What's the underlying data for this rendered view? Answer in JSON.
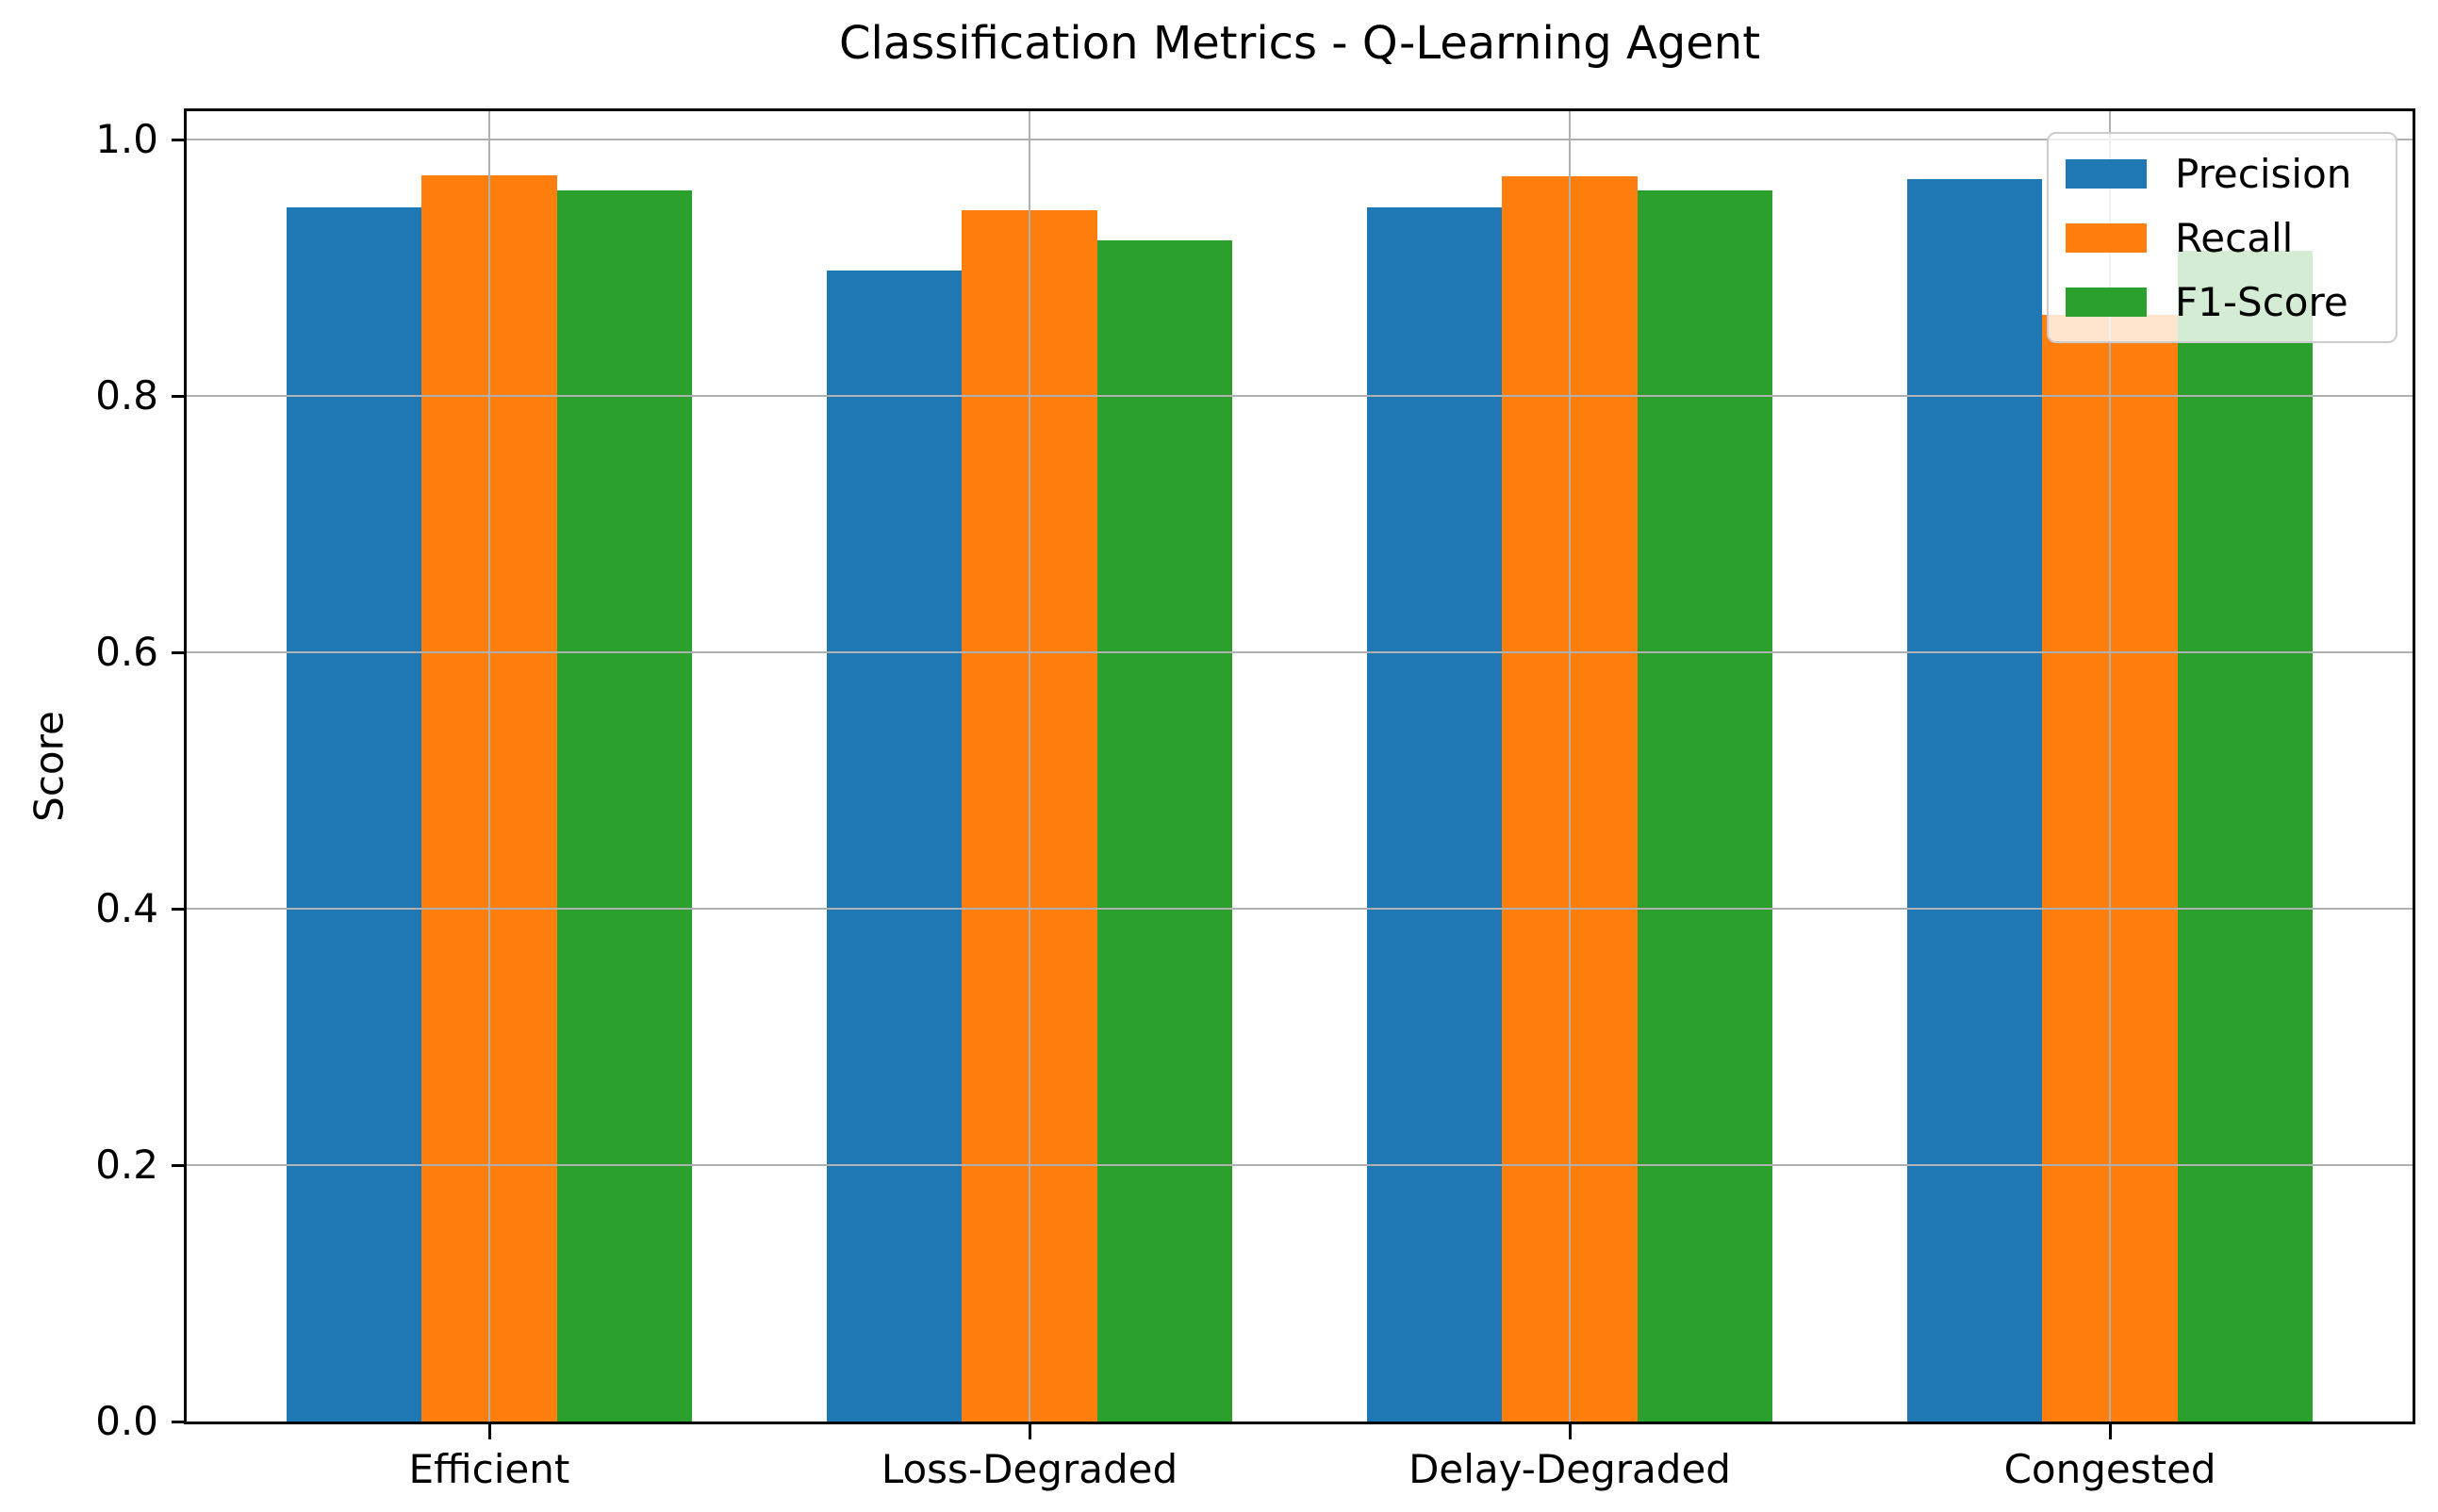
{
  "chart_data": {
    "type": "bar",
    "title": "Classification Metrics - Q-Learning Agent",
    "xlabel": "",
    "ylabel": "Score",
    "categories": [
      "Efficient",
      "Loss-Degraded",
      "Delay-Degraded",
      "Congested"
    ],
    "series": [
      {
        "name": "Precision",
        "color": "#1f77b4",
        "values": [
          0.947,
          0.898,
          0.947,
          0.969
        ]
      },
      {
        "name": "Recall",
        "color": "#ff7f0e",
        "values": [
          0.972,
          0.945,
          0.971,
          0.863
        ]
      },
      {
        "name": "F1-Score",
        "color": "#2ca02c",
        "values": [
          0.96,
          0.921,
          0.96,
          0.913
        ]
      }
    ],
    "yticks": [
      0.0,
      0.2,
      0.4,
      0.6,
      0.8,
      1.0
    ],
    "ytick_labels": [
      "0.0",
      "0.2",
      "0.4",
      "0.6",
      "0.8",
      "1.0"
    ],
    "ylim": [
      0,
      1.022
    ],
    "xlim": [
      -0.56,
      3.56
    ],
    "bar_width": 0.25,
    "grid": true,
    "grid_above_bars": true,
    "legend_position": "upper right",
    "colors": {
      "grid": "#b0b0b0",
      "spine": "#000000",
      "text": "#000000",
      "background": "#ffffff",
      "legend_face": "rgba(255,255,255,0.8)",
      "legend_edge": "#cccccc"
    }
  }
}
